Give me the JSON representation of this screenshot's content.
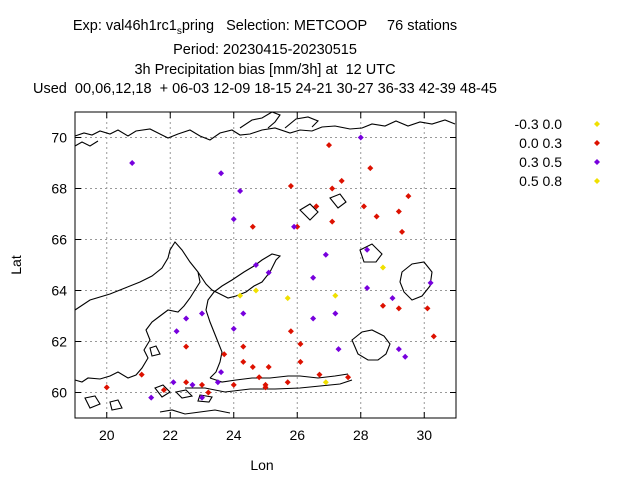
{
  "title_lines": [
    "Exp: val46h1rc1",
    "Period: 20230415-20230515",
    "3h Precipitation bias [mm/3h] at  12 UTC",
    "Used  00,06,12,18  + 06-03 12-09 18-15 24-21 30-27 36-33 42-39 48-45"
  ],
  "title_line1_subscript": "s",
  "title_line1_rest": "pring   Selection: METCOOP     76 stations",
  "chart_data": {
    "type": "scatter",
    "xlabel": "Lon",
    "ylabel": "Lat",
    "xlim": [
      19,
      31
    ],
    "ylim": [
      59,
      71
    ],
    "xticks": [
      20,
      22,
      24,
      26,
      28,
      30
    ],
    "yticks": [
      60,
      62,
      64,
      66,
      68,
      70
    ],
    "grid": true,
    "legend_position": "top-right, outside plot",
    "series": [
      {
        "name": "-0.3 0.0",
        "color": "#f0e000",
        "points": [
          [
            24.2,
            63.8
          ],
          [
            24.7,
            64.0
          ],
          [
            25.7,
            63.7
          ],
          [
            27.2,
            63.8
          ],
          [
            28.7,
            64.9
          ],
          [
            26.9,
            60.4
          ]
        ]
      },
      {
        "name": "0.0 0.3",
        "color": "#dd1100",
        "points": [
          [
            27.0,
            69.7
          ],
          [
            28.3,
            68.8
          ],
          [
            25.8,
            68.1
          ],
          [
            27.1,
            68.0
          ],
          [
            27.4,
            68.3
          ],
          [
            29.5,
            67.7
          ],
          [
            26.6,
            67.3
          ],
          [
            28.1,
            67.3
          ],
          [
            29.2,
            67.1
          ],
          [
            28.5,
            66.9
          ],
          [
            27.1,
            66.7
          ],
          [
            24.6,
            66.5
          ],
          [
            26.0,
            66.5
          ],
          [
            29.3,
            66.3
          ],
          [
            20.0,
            60.2
          ],
          [
            21.1,
            60.7
          ],
          [
            21.8,
            60.1
          ],
          [
            22.5,
            61.8
          ],
          [
            22.5,
            60.4
          ],
          [
            23.0,
            60.3
          ],
          [
            23.2,
            60.0
          ],
          [
            23.7,
            61.5
          ],
          [
            24.0,
            60.3
          ],
          [
            24.3,
            61.8
          ],
          [
            24.3,
            61.2
          ],
          [
            24.6,
            61.0
          ],
          [
            24.8,
            60.6
          ],
          [
            25.0,
            60.3
          ],
          [
            25.0,
            60.2
          ],
          [
            25.1,
            61.0
          ],
          [
            25.8,
            62.4
          ],
          [
            25.7,
            60.4
          ],
          [
            26.1,
            61.9
          ],
          [
            26.1,
            61.2
          ],
          [
            26.7,
            60.7
          ],
          [
            27.6,
            60.6
          ],
          [
            28.7,
            63.4
          ],
          [
            29.2,
            63.3
          ],
          [
            30.1,
            63.3
          ],
          [
            30.3,
            62.2
          ]
        ]
      },
      {
        "name": "0.3 0.5",
        "color": "#7700dd",
        "points": [
          [
            28.0,
            70.0
          ],
          [
            20.8,
            69.0
          ],
          [
            23.6,
            68.6
          ],
          [
            24.2,
            67.9
          ],
          [
            24.0,
            66.8
          ],
          [
            25.9,
            66.5
          ],
          [
            28.2,
            65.6
          ],
          [
            26.9,
            65.4
          ],
          [
            24.7,
            65.0
          ],
          [
            25.1,
            64.7
          ],
          [
            26.5,
            64.5
          ],
          [
            28.2,
            64.1
          ],
          [
            29.0,
            63.7
          ],
          [
            27.2,
            63.1
          ],
          [
            30.2,
            64.3
          ],
          [
            22.5,
            62.9
          ],
          [
            23.0,
            63.1
          ],
          [
            24.3,
            63.1
          ],
          [
            22.2,
            62.4
          ],
          [
            26.5,
            62.9
          ],
          [
            24.0,
            62.5
          ],
          [
            27.3,
            61.7
          ],
          [
            29.2,
            61.7
          ],
          [
            29.4,
            61.4
          ],
          [
            23.6,
            60.8
          ],
          [
            23.5,
            60.4
          ],
          [
            22.1,
            60.4
          ],
          [
            22.7,
            60.3
          ],
          [
            23.0,
            59.8
          ],
          [
            21.4,
            59.8
          ]
        ]
      },
      {
        "name": "0.5 0.8",
        "color": "#f0e000",
        "points": []
      }
    ]
  }
}
